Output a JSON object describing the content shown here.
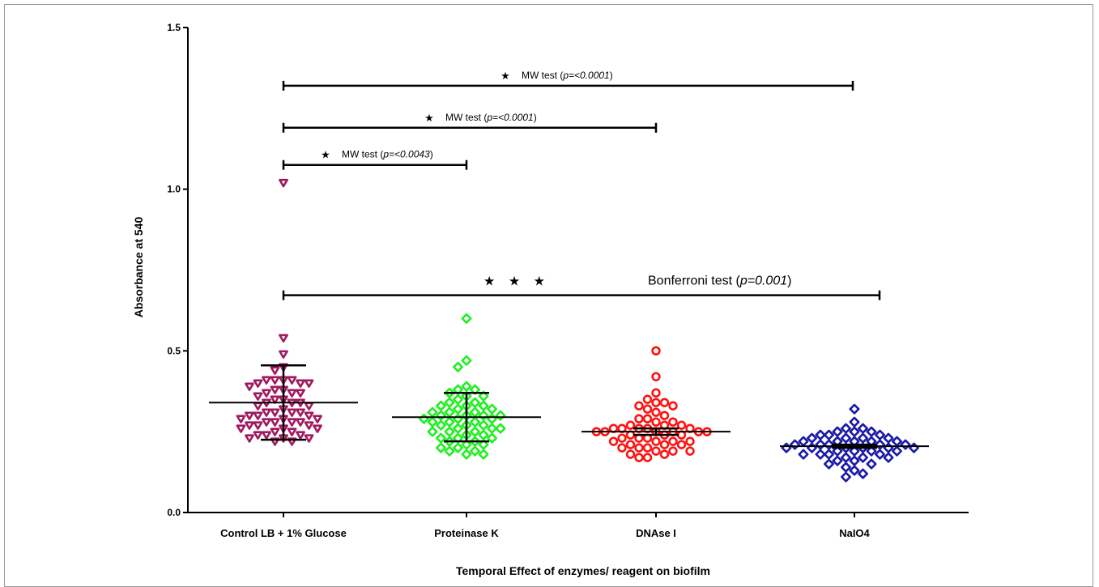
{
  "chart_data": {
    "type": "scatter",
    "xlabel": "Temporal Effect of enzymes/ reagent on biofilm",
    "ylabel": "Absorbance at 540",
    "ylim": [
      0,
      1.5
    ],
    "yticks": [
      0.0,
      0.5,
      1.0,
      1.5
    ],
    "ytick_labels": [
      "0.0",
      "0.5",
      "1.0",
      "1.5"
    ],
    "categories": [
      "Control LB + 1% Glucose",
      "Proteinase K",
      "DNAse I",
      "NaIO4"
    ],
    "groups": [
      {
        "name": "Control LB + 1% Glucose",
        "marker": "triangle-down-open",
        "color": "#a0195f",
        "mean": 0.34,
        "error_low": 0.225,
        "error_high": 0.455,
        "values": [
          1.02,
          0.54,
          0.49,
          0.45,
          0.44,
          0.41,
          0.41,
          0.4,
          0.4,
          0.4,
          0.41,
          0.41,
          0.39,
          0.38,
          0.38,
          0.37,
          0.37,
          0.37,
          0.36,
          0.35,
          0.35,
          0.34,
          0.34,
          0.34,
          0.33,
          0.33,
          0.32,
          0.31,
          0.31,
          0.31,
          0.31,
          0.3,
          0.3,
          0.3,
          0.29,
          0.29,
          0.29,
          0.28,
          0.28,
          0.28,
          0.28,
          0.27,
          0.27,
          0.27,
          0.26,
          0.26,
          0.26,
          0.25,
          0.25,
          0.24,
          0.24,
          0.24,
          0.23,
          0.23,
          0.23,
          0.22,
          0.22
        ]
      },
      {
        "name": "Proteinase K",
        "marker": "diamond-open",
        "color": "#22ee22",
        "mean": 0.295,
        "error_low": 0.22,
        "error_high": 0.37,
        "values": [
          0.6,
          0.47,
          0.45,
          0.39,
          0.38,
          0.38,
          0.37,
          0.36,
          0.36,
          0.35,
          0.34,
          0.34,
          0.33,
          0.33,
          0.33,
          0.32,
          0.32,
          0.31,
          0.31,
          0.31,
          0.3,
          0.3,
          0.3,
          0.3,
          0.29,
          0.29,
          0.29,
          0.28,
          0.28,
          0.28,
          0.27,
          0.27,
          0.27,
          0.26,
          0.26,
          0.26,
          0.25,
          0.25,
          0.25,
          0.24,
          0.24,
          0.23,
          0.23,
          0.23,
          0.22,
          0.22,
          0.21,
          0.21,
          0.2,
          0.2,
          0.19,
          0.19,
          0.18,
          0.18
        ]
      },
      {
        "name": "DNAse I",
        "marker": "circle-open",
        "color": "#ff1111",
        "mean": 0.25,
        "error_low": 0.24,
        "error_high": 0.26,
        "values": [
          0.5,
          0.42,
          0.37,
          0.35,
          0.34,
          0.34,
          0.33,
          0.33,
          0.32,
          0.31,
          0.3,
          0.29,
          0.29,
          0.28,
          0.28,
          0.27,
          0.27,
          0.27,
          0.26,
          0.26,
          0.26,
          0.26,
          0.26,
          0.25,
          0.25,
          0.25,
          0.25,
          0.25,
          0.25,
          0.24,
          0.24,
          0.24,
          0.23,
          0.23,
          0.23,
          0.22,
          0.22,
          0.22,
          0.22,
          0.21,
          0.21,
          0.21,
          0.2,
          0.2,
          0.2,
          0.19,
          0.19,
          0.19,
          0.18,
          0.18,
          0.17,
          0.17
        ]
      },
      {
        "name": "NaIO4",
        "marker": "diamond-open",
        "color": "#1a1aaa",
        "mean": 0.205,
        "error_low": 0.2,
        "error_high": 0.21,
        "values": [
          0.32,
          0.28,
          0.26,
          0.26,
          0.25,
          0.25,
          0.25,
          0.24,
          0.24,
          0.24,
          0.23,
          0.23,
          0.23,
          0.23,
          0.22,
          0.22,
          0.22,
          0.22,
          0.22,
          0.21,
          0.21,
          0.21,
          0.21,
          0.21,
          0.2,
          0.2,
          0.2,
          0.2,
          0.2,
          0.2,
          0.19,
          0.19,
          0.19,
          0.19,
          0.18,
          0.18,
          0.18,
          0.18,
          0.17,
          0.17,
          0.17,
          0.16,
          0.16,
          0.15,
          0.15,
          0.14,
          0.13,
          0.12,
          0.11
        ]
      }
    ],
    "comparisons": [
      {
        "from": 0,
        "to": 3,
        "y": 1.32,
        "stars": "★",
        "label": "MW test (",
        "p": "p=<0.0001",
        "close": ")"
      },
      {
        "from": 0,
        "to": 2,
        "y": 1.19,
        "stars": "★",
        "label": "MW test (",
        "p": "p=<0.0001",
        "close": ")"
      },
      {
        "from": 0,
        "to": 1,
        "y": 1.075,
        "stars": "★",
        "label": "MW test (",
        "p": "p=<0.0043",
        "close": ")"
      },
      {
        "from": 0,
        "to": 3,
        "y": 0.672,
        "stars": "★ ★ ★",
        "label": "Bonferroni test (",
        "p": "p=0.001",
        "close": ")",
        "large": true
      }
    ]
  }
}
